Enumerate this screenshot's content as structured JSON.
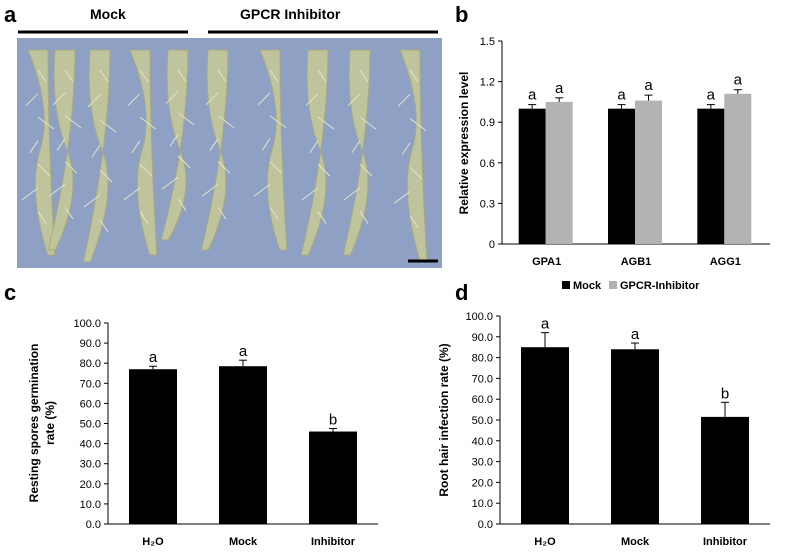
{
  "panel_labels": {
    "a": "a",
    "b": "b",
    "c": "c",
    "d": "d"
  },
  "photo": {
    "group_left": "Mock",
    "group_right": "GPCR Inhibitor",
    "background_color": "#8ea0c4",
    "root_color": "#c3c69a"
  },
  "legend": {
    "items": [
      {
        "label": "Mock",
        "color": "#000000"
      },
      {
        "label": "GPCR-Inhibitor",
        "color": "#b3b3b3"
      }
    ]
  },
  "chart_data": [
    {
      "id": "b",
      "type": "bar",
      "ylabel": "Relative expression level",
      "ylim": [
        0,
        1.5
      ],
      "yticks": [
        "0",
        "0.3",
        "0.6",
        "0.9",
        "1.2",
        "1.5"
      ],
      "categories": [
        "GPA1",
        "AGB1",
        "AGG1"
      ],
      "series": [
        {
          "name": "Mock",
          "color": "#000000",
          "values": [
            1.0,
            1.0,
            1.0
          ],
          "errors": [
            0.03,
            0.03,
            0.03
          ],
          "letters": [
            "a",
            "a",
            "a"
          ]
        },
        {
          "name": "GPCR-Inhibitor",
          "color": "#b3b3b3",
          "values": [
            1.05,
            1.06,
            1.11
          ],
          "errors": [
            0.03,
            0.04,
            0.03
          ],
          "letters": [
            "a",
            "a",
            "a"
          ]
        }
      ]
    },
    {
      "id": "c",
      "type": "bar",
      "ylabel_lines": [
        "Resting spores germination",
        "rate (%)"
      ],
      "ylim": [
        0,
        100
      ],
      "yticks": [
        "0.0",
        "10.0",
        "20.0",
        "30.0",
        "40.0",
        "50.0",
        "60.0",
        "70.0",
        "80.0",
        "90.0",
        "100.0"
      ],
      "categories": [
        "H₂O",
        "Mock",
        "Inhibitor"
      ],
      "values": [
        77.0,
        78.5,
        46.0
      ],
      "errors": [
        1.5,
        3.0,
        1.5
      ],
      "letters": [
        "a",
        "a",
        "b"
      ],
      "color": "#000000"
    },
    {
      "id": "d",
      "type": "bar",
      "ylabel": "Root hair infection rate (%)",
      "ylim": [
        0,
        100
      ],
      "yticks": [
        "0.0",
        "10.0",
        "20.0",
        "30.0",
        "40.0",
        "50.0",
        "60.0",
        "70.0",
        "80.0",
        "90.0",
        "100.0"
      ],
      "categories": [
        "H₂O",
        "Mock",
        "Inhibitor"
      ],
      "values": [
        85.0,
        84.0,
        51.5
      ],
      "errors": [
        7.0,
        3.0,
        7.0
      ],
      "letters": [
        "a",
        "a",
        "b"
      ],
      "color": "#000000"
    }
  ]
}
